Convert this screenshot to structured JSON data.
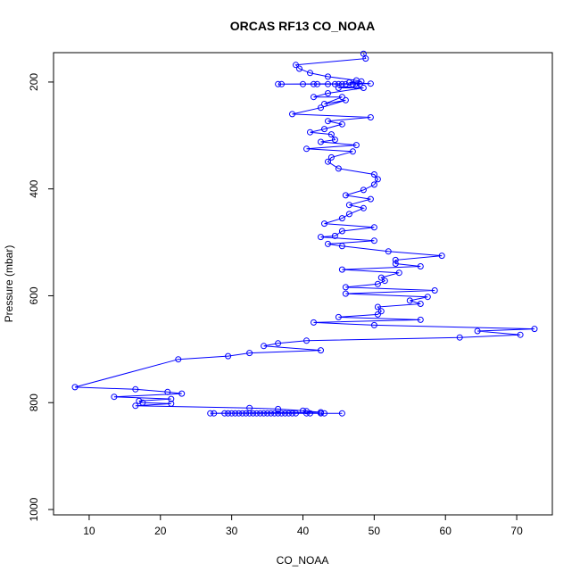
{
  "chart_data": {
    "type": "line",
    "title": "ORCAS RF13 CO_NOAA",
    "xlabel": "CO_NOAA",
    "ylabel": "Pressure (mbar)",
    "xlim": [
      5,
      75
    ],
    "ylim": [
      1010,
      145
    ],
    "y_inverted": true,
    "xticks": [
      10,
      20,
      30,
      40,
      50,
      60,
      70
    ],
    "yticks": [
      200,
      400,
      600,
      800,
      1000
    ],
    "line_color": "#0000ff",
    "marker": "open-circle",
    "series": [
      {
        "name": "CO_NOAA",
        "points": [
          [
            48.5,
            147
          ],
          [
            48.8,
            156
          ],
          [
            39,
            168
          ],
          [
            39.5,
            175
          ],
          [
            41,
            183
          ],
          [
            43.5,
            190
          ],
          [
            47.5,
            197
          ],
          [
            48.2,
            199
          ],
          [
            46.5,
            201
          ],
          [
            49.5,
            203
          ],
          [
            36.5,
            204
          ],
          [
            37,
            204
          ],
          [
            40,
            204
          ],
          [
            41.5,
            204
          ],
          [
            42,
            204
          ],
          [
            43.5,
            204
          ],
          [
            44.5,
            204
          ],
          [
            45,
            204
          ],
          [
            45.5,
            204
          ],
          [
            46,
            204
          ],
          [
            47,
            204
          ],
          [
            48,
            204
          ],
          [
            47.5,
            208
          ],
          [
            45,
            211
          ],
          [
            48.5,
            211
          ],
          [
            43.5,
            221
          ],
          [
            41.5,
            228
          ],
          [
            45.5,
            228
          ],
          [
            43,
            241
          ],
          [
            46,
            234
          ],
          [
            42.5,
            248
          ],
          [
            38.5,
            260
          ],
          [
            49.5,
            266
          ],
          [
            43.5,
            273
          ],
          [
            45.5,
            279
          ],
          [
            43,
            288
          ],
          [
            41,
            294
          ],
          [
            44,
            298
          ],
          [
            44.5,
            308
          ],
          [
            42.5,
            312
          ],
          [
            47.5,
            318
          ],
          [
            40.5,
            325
          ],
          [
            47,
            330
          ],
          [
            44,
            341
          ],
          [
            43.5,
            349
          ],
          [
            45,
            362
          ],
          [
            50,
            373
          ],
          [
            50.5,
            382
          ],
          [
            50,
            392
          ],
          [
            48.5,
            402
          ],
          [
            46,
            412
          ],
          [
            49.5,
            419
          ],
          [
            46.5,
            430
          ],
          [
            48.5,
            436
          ],
          [
            46.5,
            447
          ],
          [
            45.5,
            455
          ],
          [
            43,
            465
          ],
          [
            50,
            472
          ],
          [
            45.5,
            479
          ],
          [
            44.5,
            488
          ],
          [
            42.5,
            490
          ],
          [
            50,
            497
          ],
          [
            43.5,
            503
          ],
          [
            45.5,
            507
          ],
          [
            52,
            517
          ],
          [
            59.5,
            525
          ],
          [
            53,
            533
          ],
          [
            53,
            540
          ],
          [
            56.5,
            545
          ],
          [
            45.5,
            551
          ],
          [
            53.5,
            557
          ],
          [
            51,
            566
          ],
          [
            51.5,
            572
          ],
          [
            50.5,
            578
          ],
          [
            46,
            584
          ],
          [
            58.5,
            590
          ],
          [
            46,
            596
          ],
          [
            57.5,
            602
          ],
          [
            55,
            609
          ],
          [
            56.5,
            615
          ],
          [
            50.5,
            621
          ],
          [
            51,
            629
          ],
          [
            50.5,
            635
          ],
          [
            45,
            640
          ],
          [
            56.5,
            645
          ],
          [
            41.5,
            650
          ],
          [
            50,
            655
          ],
          [
            72.5,
            662
          ],
          [
            64.5,
            666
          ],
          [
            70.5,
            673
          ],
          [
            62,
            678
          ],
          [
            40.5,
            684
          ],
          [
            36.5,
            689
          ],
          [
            34.5,
            694
          ],
          [
            42.5,
            702
          ],
          [
            32.5,
            707
          ],
          [
            29.5,
            713
          ],
          [
            22.5,
            719
          ],
          [
            8,
            771
          ],
          [
            16.5,
            775
          ],
          [
            21,
            780
          ],
          [
            23,
            783
          ],
          [
            13.5,
            789
          ],
          [
            21.5,
            793
          ],
          [
            17,
            797
          ],
          [
            17.5,
            800
          ],
          [
            21.5,
            802
          ],
          [
            16.5,
            806
          ],
          [
            32.5,
            810
          ],
          [
            36.5,
            812
          ],
          [
            40,
            815
          ],
          [
            40.5,
            816
          ],
          [
            42.5,
            818
          ],
          [
            27,
            820
          ],
          [
            27.5,
            820
          ],
          [
            29,
            820
          ],
          [
            29.5,
            820
          ],
          [
            30,
            820
          ],
          [
            30.5,
            820
          ],
          [
            31,
            820
          ],
          [
            31.5,
            820
          ],
          [
            32,
            820
          ],
          [
            32.5,
            820
          ],
          [
            33,
            820
          ],
          [
            33.5,
            820
          ],
          [
            34,
            820
          ],
          [
            34.5,
            820
          ],
          [
            35,
            820
          ],
          [
            35.5,
            820
          ],
          [
            36,
            820
          ],
          [
            36.5,
            820
          ],
          [
            37,
            820
          ],
          [
            37.5,
            820
          ],
          [
            38,
            820
          ],
          [
            38.5,
            820
          ],
          [
            39,
            820
          ],
          [
            40.5,
            820
          ],
          [
            41,
            820
          ],
          [
            42.5,
            820
          ],
          [
            43,
            820
          ],
          [
            45.5,
            820
          ]
        ]
      }
    ]
  }
}
